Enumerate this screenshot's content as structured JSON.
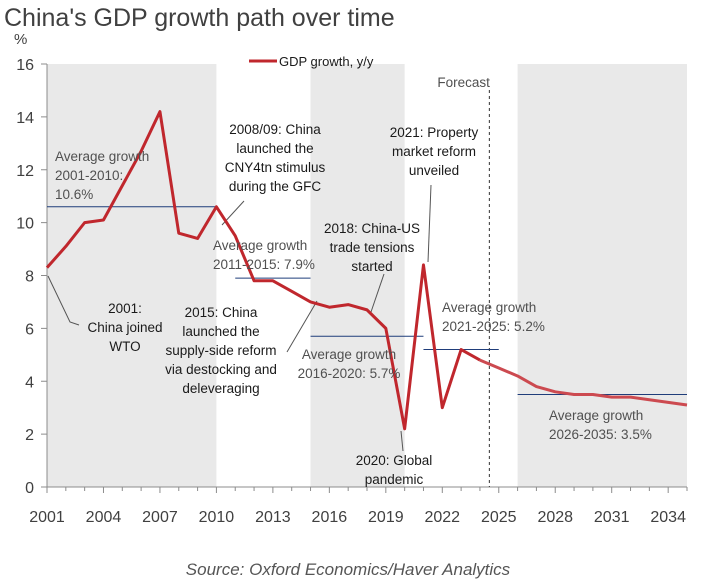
{
  "chart_data": {
    "type": "line",
    "title": "China's GDP growth path over time",
    "ylabel": "%",
    "ylim": [
      0,
      16
    ],
    "yticks": [
      0,
      2,
      4,
      6,
      8,
      10,
      12,
      14,
      16
    ],
    "xlim": [
      2001,
      2035
    ],
    "xticks": [
      2001,
      2004,
      2007,
      2010,
      2013,
      2016,
      2019,
      2022,
      2025,
      2028,
      2031,
      2034
    ],
    "series": [
      {
        "name": "GDP growth, y/y",
        "color": "#c0272d",
        "x": [
          2001,
          2002,
          2003,
          2004,
          2005,
          2006,
          2007,
          2008,
          2009,
          2010,
          2011,
          2012,
          2013,
          2014,
          2015,
          2016,
          2017,
          2018,
          2019,
          2020,
          2021,
          2022,
          2023,
          2024,
          2025,
          2026,
          2027,
          2028,
          2029,
          2030,
          2031,
          2032,
          2033,
          2034,
          2035
        ],
        "values": [
          8.3,
          9.1,
          10.0,
          10.1,
          11.4,
          12.7,
          14.2,
          9.6,
          9.4,
          10.6,
          9.5,
          7.8,
          7.8,
          7.4,
          7.0,
          6.8,
          6.9,
          6.7,
          6.0,
          2.2,
          8.4,
          3.0,
          5.2,
          4.8,
          4.5,
          4.2,
          3.8,
          3.6,
          3.5,
          3.5,
          3.4,
          3.4,
          3.3,
          3.2,
          3.1
        ]
      }
    ],
    "shaded_periods": [
      [
        2001,
        2010
      ],
      [
        2015,
        2020
      ],
      [
        2026,
        2035
      ]
    ],
    "forecast_start": 2024.5,
    "forecast_label": "Forecast",
    "average_lines": [
      {
        "from": 2001,
        "to": 2010,
        "value": 10.6
      },
      {
        "from": 2011,
        "to": 2015,
        "value": 7.9
      },
      {
        "from": 2015,
        "to": 2021,
        "value": 5.7
      },
      {
        "from": 2021,
        "to": 2025,
        "value": 5.2
      },
      {
        "from": 2026,
        "to": 2035,
        "value": 3.5
      }
    ],
    "annotations": [
      {
        "lines": [
          "Average growth",
          "2001-2010:",
          "10.6%"
        ]
      },
      {
        "lines": [
          "2008/09: China",
          "launched the",
          "CNY4tn stimulus",
          "during the GFC"
        ]
      },
      {
        "lines": [
          "Average growth",
          "2011-2015: 7.9%"
        ]
      },
      {
        "lines": [
          "2018: China-US",
          "trade tensions",
          "started"
        ]
      },
      {
        "lines": [
          "2021: Property",
          "market reform",
          "unveiled"
        ]
      },
      {
        "lines": [
          "2001:",
          "China joined",
          "WTO"
        ]
      },
      {
        "lines": [
          "2015: China",
          "launched the",
          "supply-side reform",
          "via destocking and",
          "deleveraging"
        ]
      },
      {
        "lines": [
          "Average growth",
          "2016-2020: 5.7%"
        ]
      },
      {
        "lines": [
          "Average growth",
          "2021-2025: 5.2%"
        ]
      },
      {
        "lines": [
          "Average growth",
          "2026-2035: 3.5%"
        ]
      },
      {
        "lines": [
          "2020: Global",
          "pandemic"
        ]
      }
    ],
    "source": "Source: Oxford Economics/Haver Analytics"
  }
}
